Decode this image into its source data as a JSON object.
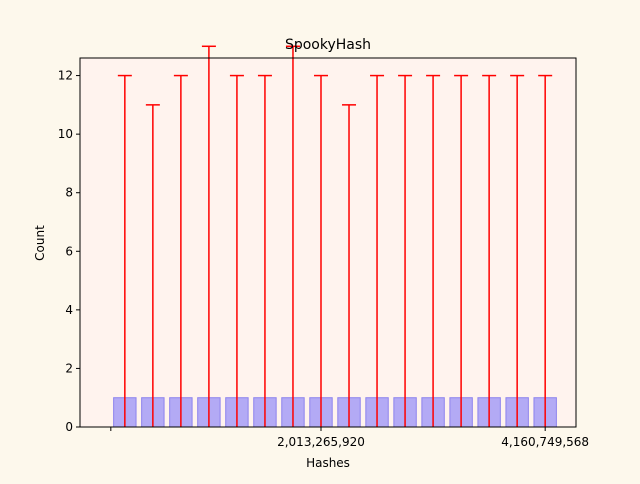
{
  "chart_data": {
    "type": "bar",
    "title": "SpookyHash",
    "xlabel": "Hashes",
    "ylabel": "Count",
    "ylim": [
      0,
      12.6
    ],
    "yticks": [
      0,
      2,
      4,
      6,
      8,
      10,
      12
    ],
    "xticks": [
      {
        "label": "",
        "x": 0
      },
      {
        "label": "2,013,265,920",
        "x": 2013265920
      },
      {
        "label": "4,160,749,568",
        "x": 4160749568
      }
    ],
    "bin_width": 268435456,
    "bins": [
      {
        "x": 134217728,
        "value": 1,
        "error_upper": 11
      },
      {
        "x": 402653184,
        "value": 1,
        "error_upper": 10
      },
      {
        "x": 671088640,
        "value": 1,
        "error_upper": 11
      },
      {
        "x": 939524096,
        "value": 1,
        "error_upper": 12
      },
      {
        "x": 1207959552,
        "value": 1,
        "error_upper": 11
      },
      {
        "x": 1476395008,
        "value": 1,
        "error_upper": 11
      },
      {
        "x": 1744830464,
        "value": 1,
        "error_upper": 12
      },
      {
        "x": 2013265920,
        "value": 1,
        "error_upper": 11
      },
      {
        "x": 2281701376,
        "value": 1,
        "error_upper": 10
      },
      {
        "x": 2550136832,
        "value": 1,
        "error_upper": 11
      },
      {
        "x": 2818572288,
        "value": 1,
        "error_upper": 11
      },
      {
        "x": 3087007744,
        "value": 1,
        "error_upper": 11
      },
      {
        "x": 3355443200,
        "value": 1,
        "error_upper": 11
      },
      {
        "x": 3623878656,
        "value": 1,
        "error_upper": 11
      },
      {
        "x": 3892314112,
        "value": 1,
        "error_upper": 11
      },
      {
        "x": 4160749568,
        "value": 1,
        "error_upper": 11
      }
    ],
    "grid": false,
    "legend": "none",
    "colors": {
      "bar_fill": "#b3aaf5",
      "bar_edge": "#8c82ee",
      "error_bar": "#ff0000",
      "plot_bg": "#fff3ee",
      "figure_bg": "#fdf8ec"
    }
  }
}
